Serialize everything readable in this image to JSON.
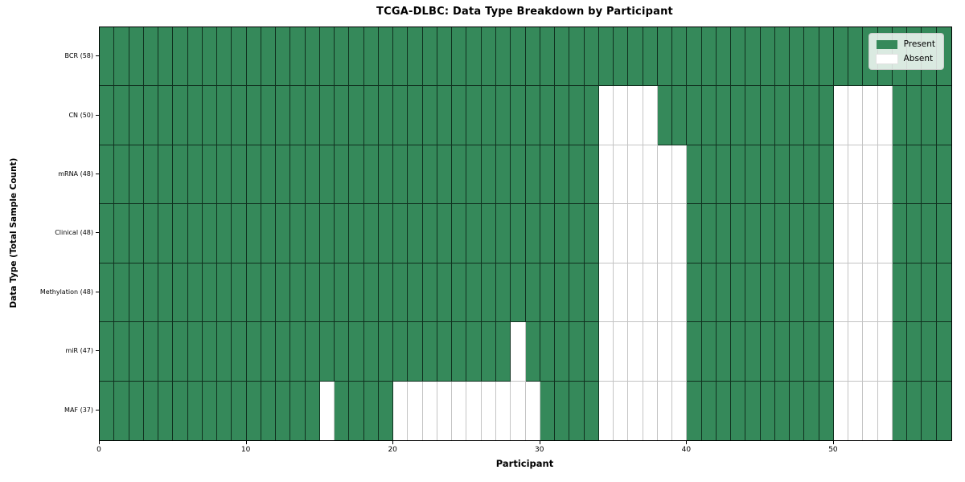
{
  "title": "TCGA-DLBC: Data Type Breakdown by Participant",
  "x_axis": {
    "label": "Participant",
    "ticks": [
      0,
      10,
      20,
      30,
      40,
      50
    ],
    "max": 58
  },
  "y_axis": {
    "label": "Data Type (Total Sample Count)"
  },
  "legend": {
    "present_label": "Present",
    "absent_label": "Absent"
  },
  "colors": {
    "present": "#35895a",
    "absent": "#ffffff",
    "frame": "#000000"
  },
  "chart_data": {
    "type": "heatmap",
    "title": "TCGA-DLBC: Data Type Breakdown by Participant",
    "xlabel": "Participant",
    "ylabel": "Data Type (Total Sample Count)",
    "x_range": [
      0,
      58
    ],
    "n_columns": 58,
    "cell_values": {
      "present": 1,
      "absent": 0
    },
    "rows": [
      {
        "label": "BCR (58)",
        "present_count": 58,
        "absent_columns": []
      },
      {
        "label": "CN (50)",
        "present_count": 50,
        "absent_columns": [
          34,
          35,
          36,
          37,
          50,
          51,
          52,
          53
        ]
      },
      {
        "label": "mRNA (48)",
        "present_count": 48,
        "absent_columns": [
          34,
          35,
          36,
          37,
          38,
          39,
          50,
          51,
          52,
          53
        ]
      },
      {
        "label": "Clinical (48)",
        "present_count": 48,
        "absent_columns": [
          34,
          35,
          36,
          37,
          38,
          39,
          50,
          51,
          52,
          53
        ]
      },
      {
        "label": "Methylation (48)",
        "present_count": 48,
        "absent_columns": [
          34,
          35,
          36,
          37,
          38,
          39,
          50,
          51,
          52,
          53
        ]
      },
      {
        "label": "miR (47)",
        "present_count": 47,
        "absent_columns": [
          28,
          34,
          35,
          36,
          37,
          38,
          39,
          50,
          51,
          52,
          53
        ]
      },
      {
        "label": "MAF (37)",
        "present_count": 37,
        "absent_columns": [
          15,
          20,
          21,
          22,
          23,
          24,
          25,
          26,
          27,
          28,
          29,
          34,
          35,
          36,
          37,
          38,
          39,
          50,
          51,
          52,
          53
        ]
      }
    ],
    "legend_entries": [
      "Present",
      "Absent"
    ],
    "legend_position": "upper right",
    "grid": "cell-borders"
  }
}
